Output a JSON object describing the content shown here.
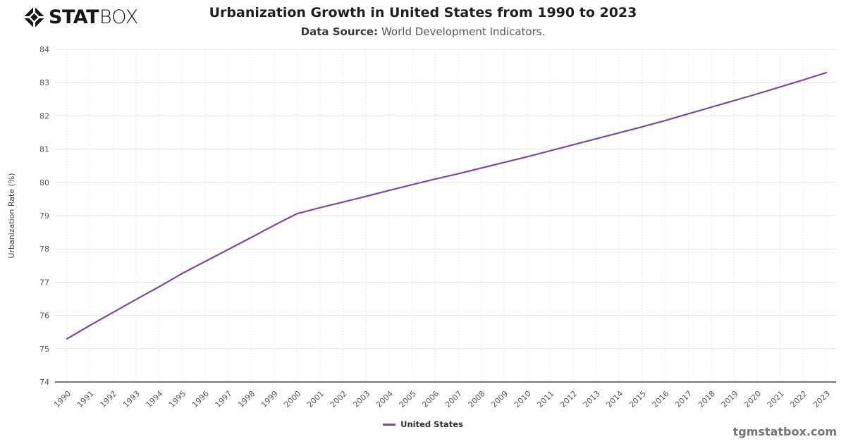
{
  "logo": {
    "icon": "statbox-diamond-icon",
    "stat": "STAT",
    "box": "BOX"
  },
  "header": {
    "title": "Urbanization Growth in United States from 1990 to 2023",
    "subtitle_label": "Data Source:",
    "subtitle_text": "World Development Indicators."
  },
  "footer": {
    "watermark": "tgmstatbox.com"
  },
  "chart_data": {
    "type": "line",
    "title": "Urbanization Growth in United States from 1990 to 2023",
    "xlabel": "",
    "ylabel": "Urbanization Rate (%)",
    "ylim": [
      74,
      84
    ],
    "ytick_step": 1,
    "grid": true,
    "legend_position": "bottom-center",
    "categories": [
      "1990",
      "1991",
      "1992",
      "1993",
      "1994",
      "1995",
      "1996",
      "1997",
      "1998",
      "1999",
      "2000",
      "2001",
      "2002",
      "2003",
      "2004",
      "2005",
      "2006",
      "2007",
      "2008",
      "2009",
      "2010",
      "2011",
      "2012",
      "2013",
      "2014",
      "2015",
      "2016",
      "2017",
      "2018",
      "2019",
      "2020",
      "2021",
      "2022",
      "2023"
    ],
    "series": [
      {
        "name": "United States",
        "color": "#7d4b99",
        "values": [
          75.3,
          75.7,
          76.09,
          76.48,
          76.86,
          77.26,
          77.62,
          77.98,
          78.34,
          78.71,
          79.06,
          79.24,
          79.41,
          79.58,
          79.76,
          79.93,
          80.1,
          80.26,
          80.43,
          80.6,
          80.77,
          80.95,
          81.13,
          81.31,
          81.49,
          81.67,
          81.86,
          82.06,
          82.26,
          82.46,
          82.66,
          82.87,
          83.08,
          83.3
        ]
      }
    ],
    "colors": {
      "h_gridline": "#e4e4e4",
      "v_gridline": "#d9d9d9",
      "axis": "#222222",
      "tick_label": "#555555",
      "axis_title": "#444444"
    }
  }
}
